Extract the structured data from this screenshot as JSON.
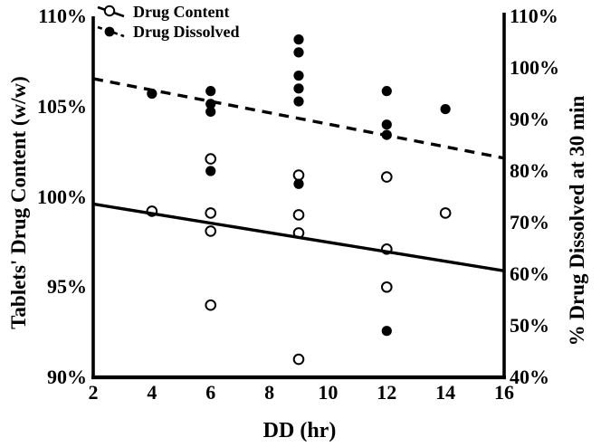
{
  "figure": {
    "background_color": "#ffffff",
    "foreground_color": "#000000"
  },
  "chart_data": {
    "type": "scatter",
    "title": "",
    "xlabel": "DD (hr)",
    "ylabel_left": "Tablets' Drug Content (w/w)",
    "ylabel_right": "% Drug Dissolved at 30 min",
    "xlim": [
      2,
      16
    ],
    "ylim_left": [
      90,
      110
    ],
    "ylim_right": [
      40,
      110
    ],
    "grid": false,
    "x_ticks": [
      {
        "value": 2,
        "label": "2"
      },
      {
        "value": 4,
        "label": "4"
      },
      {
        "value": 6,
        "label": "6"
      },
      {
        "value": 8,
        "label": "8"
      },
      {
        "value": 10,
        "label": "10"
      },
      {
        "value": 12,
        "label": "12"
      },
      {
        "value": 14,
        "label": "14"
      },
      {
        "value": 16,
        "label": "16"
      }
    ],
    "y_ticks_left": [
      {
        "value": 110,
        "label": "110%"
      },
      {
        "value": 105,
        "label": "105%"
      },
      {
        "value": 100,
        "label": "100%"
      },
      {
        "value": 95,
        "label": "95%"
      },
      {
        "value": 90,
        "label": "90%"
      }
    ],
    "y_ticks_right": [
      {
        "value": 110,
        "label": "110%"
      },
      {
        "value": 100,
        "label": "100%"
      },
      {
        "value": 90,
        "label": "90%"
      },
      {
        "value": 80,
        "label": "80%"
      },
      {
        "value": 70,
        "label": "70%"
      },
      {
        "value": 60,
        "label": "60%"
      },
      {
        "value": 50,
        "label": "50%"
      },
      {
        "value": 40,
        "label": "40%"
      }
    ],
    "legend": {
      "position": "top-left",
      "entries": [
        {
          "label": "Drug Content",
          "marker": "open-circle",
          "line": "solid"
        },
        {
          "label": "Drug Dissolved",
          "marker": "filled-circle",
          "line": "dashed"
        }
      ]
    },
    "series": [
      {
        "name": "Drug Content",
        "axis": "left",
        "marker": "open-circle",
        "color": "#000000",
        "points": [
          [
            4,
            99.2
          ],
          [
            6,
            102.1
          ],
          [
            6,
            99.1
          ],
          [
            6,
            98.1
          ],
          [
            6,
            94.0
          ],
          [
            9,
            101.2
          ],
          [
            9,
            99.0
          ],
          [
            9,
            98.0
          ],
          [
            9,
            91.0
          ],
          [
            12,
            101.1
          ],
          [
            12,
            97.1
          ],
          [
            12,
            95.0
          ],
          [
            14,
            99.1
          ]
        ]
      },
      {
        "name": "Drug Dissolved",
        "axis": "right",
        "marker": "filled-circle",
        "color": "#000000",
        "points": [
          [
            4,
            95
          ],
          [
            6,
            95.5
          ],
          [
            6,
            93
          ],
          [
            6,
            91.5
          ],
          [
            6,
            80
          ],
          [
            9,
            105.5
          ],
          [
            9,
            103
          ],
          [
            9,
            98.5
          ],
          [
            9,
            96
          ],
          [
            9,
            93.5
          ],
          [
            9,
            77.5
          ],
          [
            12,
            95.5
          ],
          [
            12,
            89
          ],
          [
            12,
            87
          ],
          [
            12,
            49
          ],
          [
            14,
            92
          ]
        ]
      }
    ],
    "trendlines": [
      {
        "name": "drug-content-trend",
        "axis": "left",
        "style": "solid",
        "x": [
          2,
          16
        ],
        "y": [
          99.6,
          95.9
        ]
      },
      {
        "name": "drug-dissolved-trend",
        "axis": "right",
        "style": "dashed",
        "x": [
          2,
          16
        ],
        "y": [
          97.9,
          82.5
        ]
      }
    ]
  }
}
